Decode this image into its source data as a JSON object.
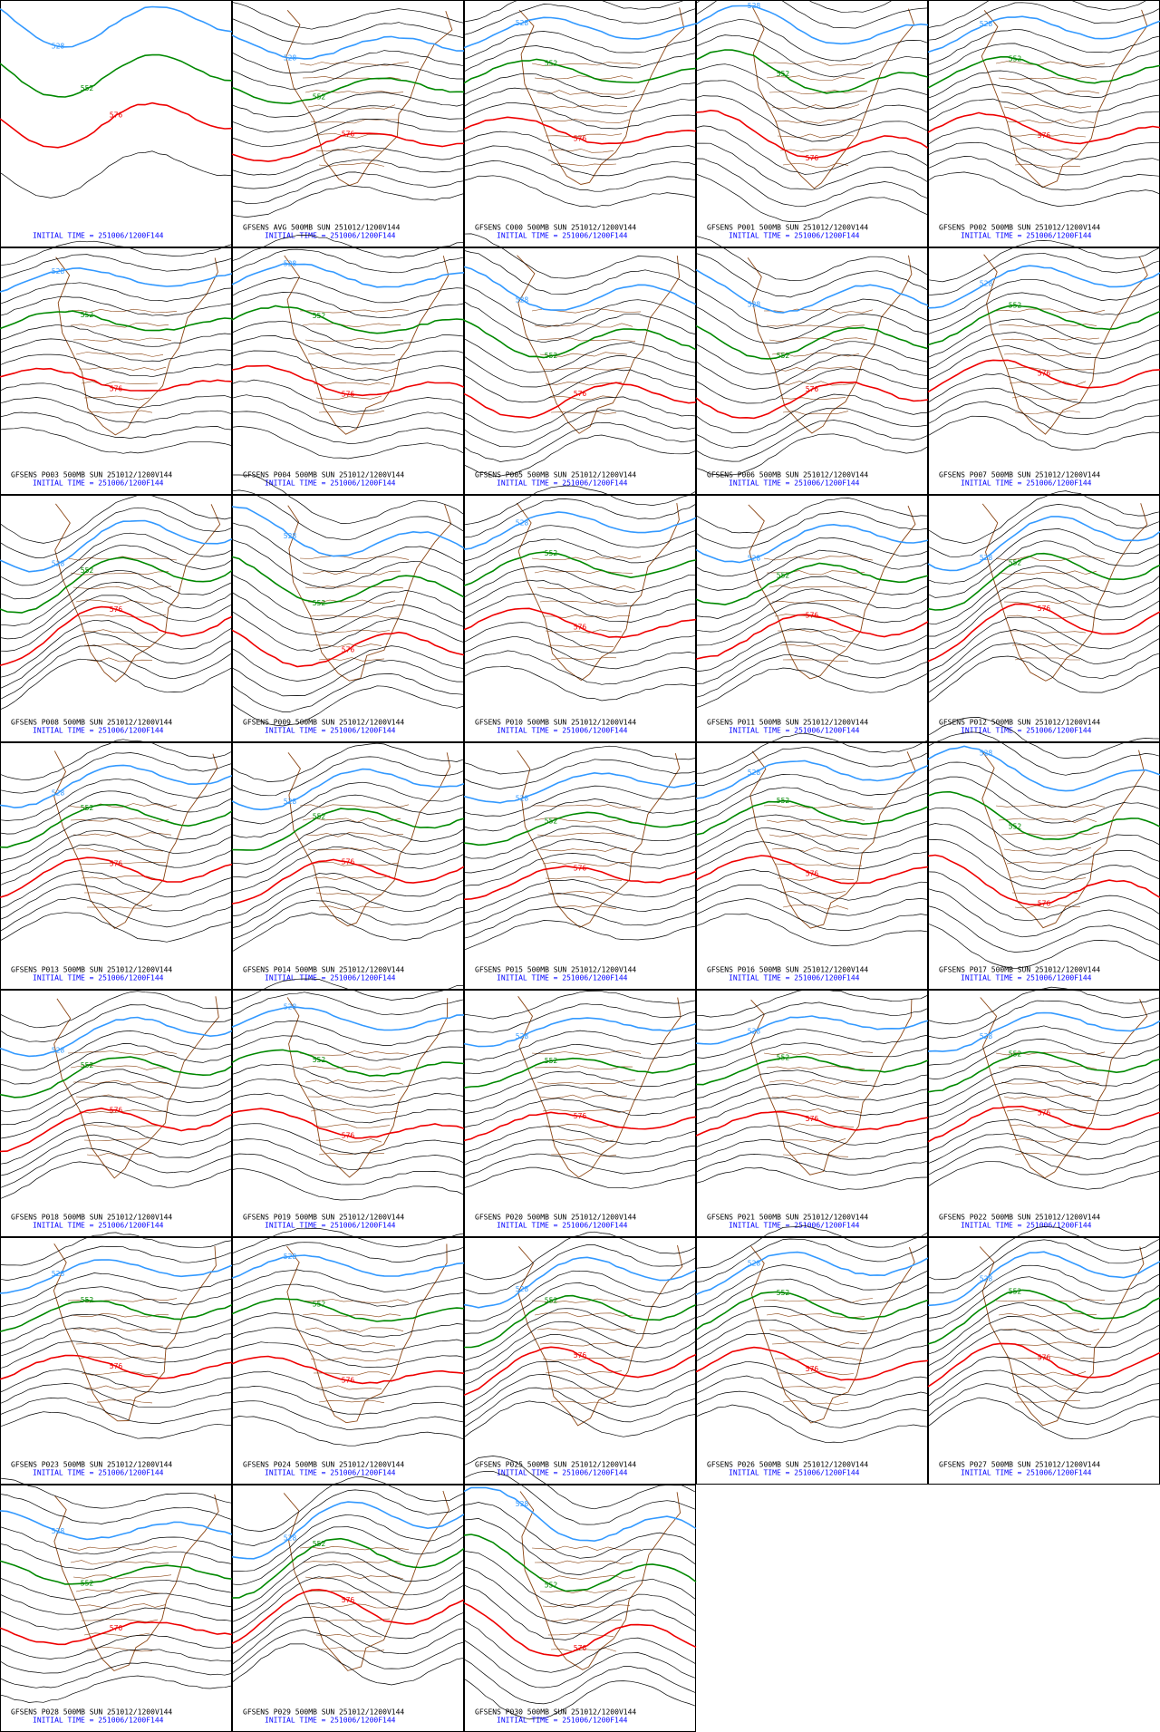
{
  "panels": [
    {
      "init": "INITIAL TIME = 251006/1200F144",
      "contour_labels": [
        "528",
        "552",
        "576"
      ]
    },
    {
      "title": "GFSENS AVG 500MB SUN 251012/1200V144",
      "init": "INITIAL TIME = 251006/1200F144",
      "contour_labels": [
        "528",
        "552",
        "576"
      ]
    },
    {
      "title": "GFSENS C000 500MB SUN 251012/1200V144",
      "init": "INITIAL TIME = 251006/1200F144",
      "contour_labels": [
        "528",
        "552",
        "576"
      ]
    },
    {
      "title": "GFSENS P001 500MB SUN 251012/1200V144",
      "init": "INITIAL TIME = 251006/1200F144",
      "contour_labels": [
        "528",
        "552",
        "576"
      ]
    },
    {
      "title": "GFSENS P002 500MB SUN 251012/1200V144",
      "init": "INITIAL TIME = 251006/1200F144",
      "contour_labels": [
        "528",
        "552",
        "576"
      ]
    },
    {
      "title": "GFSENS P003 500MB SUN 251012/1200V144",
      "init": "INITIAL TIME = 251006/1200F144",
      "contour_labels": [
        "528",
        "552",
        "576"
      ]
    },
    {
      "title": "GFSENS P004 500MB SUN 251012/1200V144",
      "init": "INITIAL TIME = 251006/1200F144",
      "contour_labels": [
        "528",
        "552",
        "576"
      ]
    },
    {
      "title": "GFSENS P005 500MB SUN 251012/1200V144",
      "init": "INITIAL TIME = 251006/1200F144",
      "contour_labels": [
        "528",
        "552",
        "576"
      ]
    },
    {
      "title": "GFSENS P006 500MB SUN 251012/1200V144",
      "init": "INITIAL TIME = 251006/1200F144",
      "contour_labels": [
        "528",
        "552",
        "576"
      ]
    },
    {
      "title": "GFSENS P007 500MB SUN 251012/1200V144",
      "init": "INITIAL TIME = 251006/1200F144",
      "contour_labels": [
        "528",
        "552",
        "576"
      ]
    },
    {
      "title": "GFSENS P008 500MB SUN 251012/1200V144",
      "init": "INITIAL TIME = 251006/1200F144",
      "contour_labels": [
        "528",
        "552",
        "576"
      ]
    },
    {
      "title": "GFSENS P009 500MB SUN 251012/1200V144",
      "init": "INITIAL TIME = 251006/1200F144",
      "contour_labels": [
        "528",
        "552",
        "576"
      ]
    },
    {
      "title": "GFSENS P010 500MB SUN 251012/1200V144",
      "init": "INITIAL TIME = 251006/1200F144",
      "contour_labels": [
        "528",
        "552",
        "576"
      ]
    },
    {
      "title": "GFSENS P011 500MB SUN 251012/1200V144",
      "init": "INITIAL TIME = 251006/1200F144",
      "contour_labels": [
        "528",
        "552",
        "576"
      ]
    },
    {
      "title": "GFSENS P012 500MB SUN 251012/1200V144",
      "init": "INITIAL TIME = 251006/1200F144",
      "contour_labels": [
        "528",
        "552",
        "576"
      ]
    },
    {
      "title": "GFSENS P013 500MB SUN 251012/1200V144",
      "init": "INITIAL TIME = 251006/1200F144",
      "contour_labels": [
        "528",
        "552",
        "576"
      ]
    },
    {
      "title": "GFSENS P014 500MB SUN 251012/1200V144",
      "init": "INITIAL TIME = 251006/1200F144",
      "contour_labels": [
        "528",
        "552",
        "576"
      ]
    },
    {
      "title": "GFSENS P015 500MB SUN 251012/1200V144",
      "init": "INITIAL TIME = 251006/1200F144",
      "contour_labels": [
        "528",
        "552",
        "576"
      ]
    },
    {
      "title": "GFSENS P016 500MB SUN 251012/1200V144",
      "init": "INITIAL TIME = 251006/1200F144",
      "contour_labels": [
        "528",
        "552",
        "576"
      ]
    },
    {
      "title": "GFSENS P017 500MB SUN 251012/1200V144",
      "init": "INITIAL TIME = 251006/1200F144",
      "contour_labels": [
        "528",
        "552",
        "576"
      ]
    },
    {
      "title": "GFSENS P018 500MB SUN 251012/1200V144",
      "init": "INITIAL TIME = 251006/1200F144",
      "contour_labels": [
        "528",
        "552",
        "576"
      ]
    },
    {
      "title": "GFSENS P019 500MB SUN 251012/1200V144",
      "init": "INITIAL TIME = 251006/1200F144",
      "contour_labels": [
        "528",
        "552",
        "576"
      ]
    },
    {
      "title": "GFSENS P020 500MB SUN 251012/1200V144",
      "init": "INITIAL TIME = 251006/1200F144",
      "contour_labels": [
        "528",
        "552",
        "576"
      ]
    },
    {
      "title": "GFSENS P021 500MB SUN 251012/1200V144",
      "init": "INITIAL TIME = 251006/1200F144",
      "contour_labels": [
        "528",
        "552",
        "576"
      ]
    },
    {
      "title": "GFSENS P022 500MB SUN 251012/1200V144",
      "init": "INITIAL TIME = 251006/1200F144",
      "contour_labels": [
        "528",
        "552",
        "576"
      ]
    },
    {
      "title": "GFSENS P023 500MB SUN 251012/1200V144",
      "init": "INITIAL TIME = 251006/1200F144",
      "contour_labels": [
        "528",
        "552",
        "576"
      ]
    },
    {
      "title": "GFSENS P024 500MB SUN 251012/1200V144",
      "init": "INITIAL TIME = 251006/1200F144",
      "contour_labels": [
        "528",
        "552",
        "576"
      ]
    },
    {
      "title": "GFSENS P025 500MB SUN 251012/1200V144",
      "init": "INITIAL TIME = 251006/1200F144",
      "contour_labels": [
        "528",
        "552",
        "576"
      ]
    },
    {
      "title": "GFSENS P026 500MB SUN 251012/1200V144",
      "init": "INITIAL TIME = 251006/1200F144",
      "contour_labels": [
        "528",
        "552",
        "576"
      ]
    },
    {
      "title": "GFSENS P027 500MB SUN 251012/1200V144",
      "init": "INITIAL TIME = 251006/1200F144",
      "contour_labels": [
        "528",
        "552",
        "576"
      ]
    },
    {
      "title": "GFSENS P028 500MB SUN 251012/1200V144",
      "init": "INITIAL TIME = 251006/1200F144",
      "contour_labels": [
        "528",
        "552",
        "576"
      ]
    },
    {
      "title": "GFSENS P029 500MB SUN 251012/1200V144",
      "init": "INITIAL TIME = 251006/1200F144",
      "contour_labels": [
        "528",
        "552",
        "576"
      ]
    },
    {
      "title": "GFSENS P030 500MB SUN 251012/1200V144",
      "init": "INITIAL TIME = 251006/1200F144",
      "contour_labels": [
        "528",
        "552",
        "576"
      ]
    }
  ]
}
